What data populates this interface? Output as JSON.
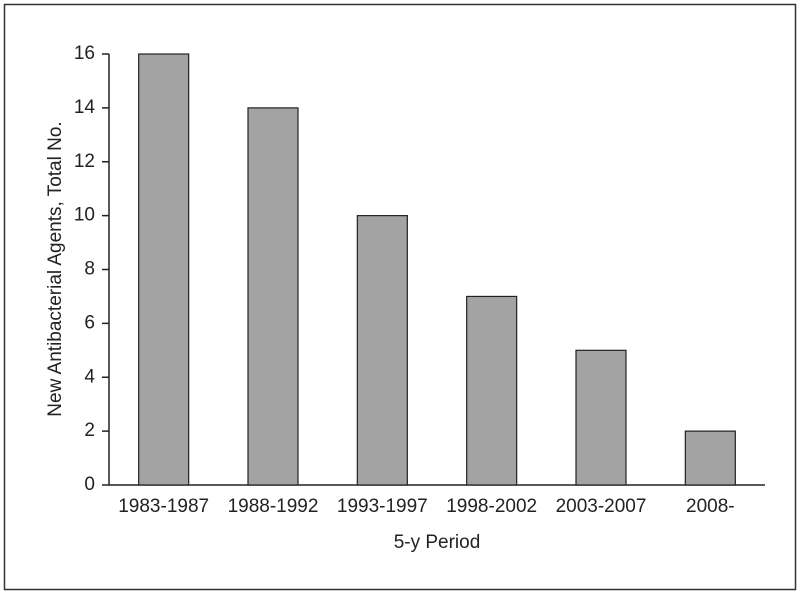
{
  "chart_data": {
    "type": "bar",
    "x_label": "5-y Period",
    "y_label": "New Antibacterial Agents, Total No.",
    "categories": [
      "1983-1987",
      "1988-1992",
      "1993-1997",
      "1998-2002",
      "2003-2007",
      "2008-"
    ],
    "values": [
      16,
      14,
      10,
      7,
      5,
      2
    ],
    "color": "#a3a3a3",
    "ylim": [
      0,
      16
    ],
    "yticks": [
      0,
      2,
      4,
      6,
      8,
      10,
      12,
      14,
      16
    ],
    "grid": false
  }
}
